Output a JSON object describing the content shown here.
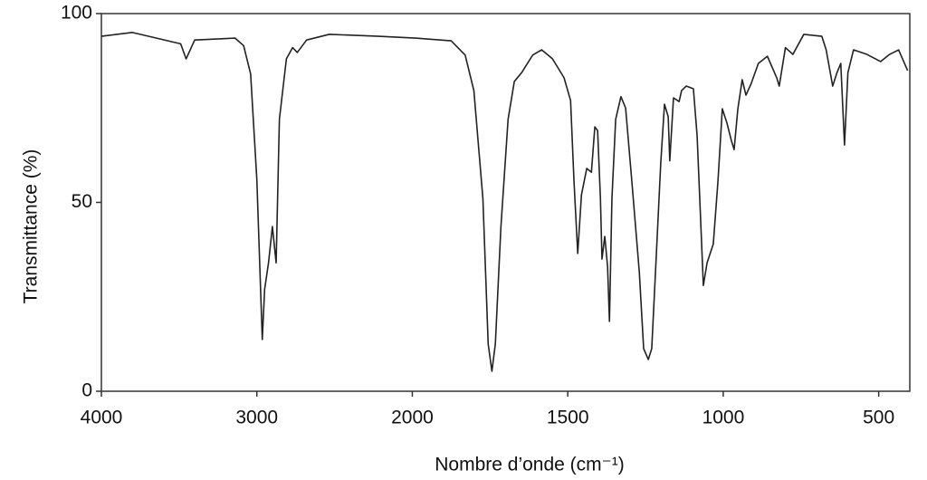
{
  "chart_data": {
    "type": "line",
    "x_label": "Nombre d’onde (cm⁻¹)",
    "y_label": "Transmittance (%)",
    "xlim": [
      4000,
      400
    ],
    "xticks": [
      4000,
      3000,
      2000,
      1500,
      1000,
      500
    ],
    "ylim": [
      0,
      100
    ],
    "yticks": [
      0,
      50,
      100
    ],
    "grid": false,
    "x": [
      4000,
      3800,
      3490,
      3455,
      3400,
      3140,
      3085,
      3040,
      3000,
      2965,
      2950,
      2925,
      2900,
      2876,
      2855,
      2810,
      2770,
      2740,
      2680,
      2535,
      2215,
      1990,
      1875,
      1830,
      1802,
      1773,
      1756,
      1744,
      1733,
      1715,
      1692,
      1672,
      1648,
      1613,
      1584,
      1549,
      1512,
      1491,
      1480,
      1468,
      1456,
      1439,
      1424,
      1413,
      1404,
      1395,
      1390,
      1381,
      1372,
      1366,
      1358,
      1346,
      1329,
      1314,
      1294,
      1270,
      1256,
      1241,
      1230,
      1215,
      1201,
      1189,
      1177,
      1172,
      1160,
      1142,
      1134,
      1119,
      1096,
      1084,
      1073,
      1064,
      1052,
      1032,
      1017,
      1003,
      988,
      974,
      965,
      953,
      939,
      927,
      910,
      887,
      858,
      828,
      820,
      800,
      776,
      741,
      683,
      669,
      648,
      634,
      622,
      610,
      599,
      581,
      538,
      494,
      465,
      436,
      407
    ],
    "series": [
      {
        "color": "#222222",
        "values": [
          94,
          95,
          92,
          88,
          93,
          93.5,
          91.5,
          84,
          56,
          13.7,
          27,
          34,
          43.6,
          34,
          72,
          88,
          91,
          89.7,
          93,
          94.5,
          94,
          93.5,
          92.8,
          89,
          79.6,
          51,
          12.5,
          5.3,
          12.5,
          43.6,
          72,
          82,
          84.4,
          89,
          90.4,
          88,
          83,
          77,
          55.6,
          36.5,
          52,
          59,
          58,
          70,
          69,
          51,
          35,
          41,
          33,
          18.5,
          51,
          72,
          78,
          75,
          55.6,
          31.6,
          11.3,
          8.4,
          11.3,
          36.5,
          60.4,
          76,
          72.7,
          61,
          77.7,
          76.7,
          79.6,
          80.8,
          80.1,
          67.6,
          46,
          28,
          34,
          39,
          55.6,
          74.8,
          71,
          66.4,
          64,
          74.8,
          82.5,
          78.4,
          81.5,
          86.8,
          88.7,
          83,
          80.8,
          91,
          89.2,
          94.5,
          94,
          90.4,
          80.8,
          84.4,
          86.8,
          65.2,
          84.4,
          90.4,
          89.2,
          87.3,
          89.2,
          90.4,
          84.9
        ]
      }
    ]
  }
}
